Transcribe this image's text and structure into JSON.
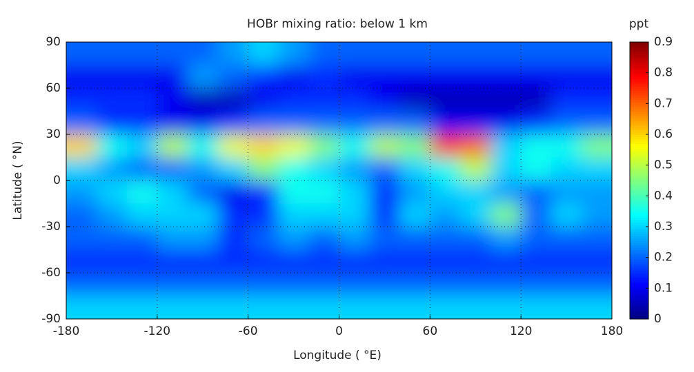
{
  "chart_data": {
    "type": "heatmap",
    "title": "HOBr mixing ratio: below 1 km",
    "xlabel": "Longitude ( °E)",
    "ylabel": "Latitude ( °N)",
    "colorbar_label": "ppt",
    "colormap": "jet",
    "x": [
      -170,
      -150,
      -130,
      -110,
      -90,
      -70,
      -50,
      -30,
      -10,
      10,
      30,
      50,
      70,
      90,
      110,
      130,
      150,
      170
    ],
    "y": [
      82.5,
      67.5,
      52.5,
      37.5,
      22.5,
      7.5,
      -7.5,
      -22.5,
      -37.5,
      -52.5,
      -67.5,
      -82.5
    ],
    "z": [
      [
        0.2,
        0.2,
        0.2,
        0.2,
        0.2,
        0.25,
        0.3,
        0.25,
        0.2,
        0.2,
        0.2,
        0.2,
        0.2,
        0.2,
        0.2,
        0.2,
        0.2,
        0.2
      ],
      [
        0.1,
        0.1,
        0.1,
        0.1,
        0.25,
        0.2,
        0.15,
        0.1,
        0.15,
        0.1,
        0.1,
        0.1,
        0.1,
        0.1,
        0.1,
        0.1,
        0.1,
        0.1
      ],
      [
        0.15,
        0.15,
        0.15,
        0.1,
        0.05,
        0.05,
        0.1,
        0.15,
        0.15,
        0.15,
        0.1,
        0.05,
        0.05,
        0.05,
        0.05,
        0.05,
        0.15,
        0.15
      ],
      [
        0.2,
        0.15,
        0.15,
        0.1,
        0.1,
        0.15,
        0.2,
        0.2,
        0.2,
        0.2,
        0.2,
        0.2,
        0.1,
        0.1,
        0.1,
        0.15,
        0.2,
        0.2
      ],
      [
        0.6,
        0.35,
        0.3,
        0.5,
        0.35,
        0.55,
        0.6,
        0.55,
        0.45,
        0.35,
        0.5,
        0.45,
        0.75,
        0.7,
        0.3,
        0.35,
        0.35,
        0.45
      ],
      [
        0.3,
        0.25,
        0.2,
        0.2,
        0.25,
        0.3,
        0.45,
        0.35,
        0.3,
        0.25,
        0.2,
        0.3,
        0.35,
        0.5,
        0.3,
        0.35,
        0.3,
        0.3
      ],
      [
        0.25,
        0.3,
        0.35,
        0.3,
        0.2,
        0.1,
        0.15,
        0.35,
        0.35,
        0.3,
        0.15,
        0.25,
        0.3,
        0.3,
        0.25,
        0.2,
        0.25,
        0.25
      ],
      [
        0.2,
        0.25,
        0.3,
        0.3,
        0.3,
        0.15,
        0.15,
        0.3,
        0.3,
        0.3,
        0.15,
        0.3,
        0.25,
        0.3,
        0.45,
        0.2,
        0.3,
        0.25
      ],
      [
        0.2,
        0.2,
        0.2,
        0.25,
        0.25,
        0.15,
        0.2,
        0.25,
        0.2,
        0.25,
        0.2,
        0.2,
        0.2,
        0.2,
        0.25,
        0.2,
        0.2,
        0.2
      ],
      [
        0.15,
        0.15,
        0.15,
        0.15,
        0.15,
        0.15,
        0.15,
        0.15,
        0.15,
        0.15,
        0.15,
        0.15,
        0.15,
        0.15,
        0.15,
        0.15,
        0.15,
        0.15
      ],
      [
        0.2,
        0.2,
        0.2,
        0.2,
        0.2,
        0.2,
        0.2,
        0.2,
        0.2,
        0.2,
        0.2,
        0.2,
        0.2,
        0.2,
        0.2,
        0.2,
        0.2,
        0.2
      ],
      [
        0.3,
        0.3,
        0.3,
        0.3,
        0.3,
        0.3,
        0.3,
        0.3,
        0.3,
        0.3,
        0.3,
        0.3,
        0.3,
        0.3,
        0.3,
        0.3,
        0.3,
        0.3
      ]
    ],
    "xlim": [
      -180,
      180
    ],
    "ylim": [
      -90,
      90
    ],
    "xticks": [
      -180,
      -120,
      -60,
      0,
      60,
      120,
      180
    ],
    "yticks": [
      -90,
      -60,
      -30,
      0,
      30,
      60,
      90
    ],
    "clim": [
      0,
      0.9
    ],
    "cticks": [
      0,
      0.1,
      0.2,
      0.3,
      0.4,
      0.5,
      0.6,
      0.7,
      0.8,
      0.9
    ],
    "grid": true
  }
}
